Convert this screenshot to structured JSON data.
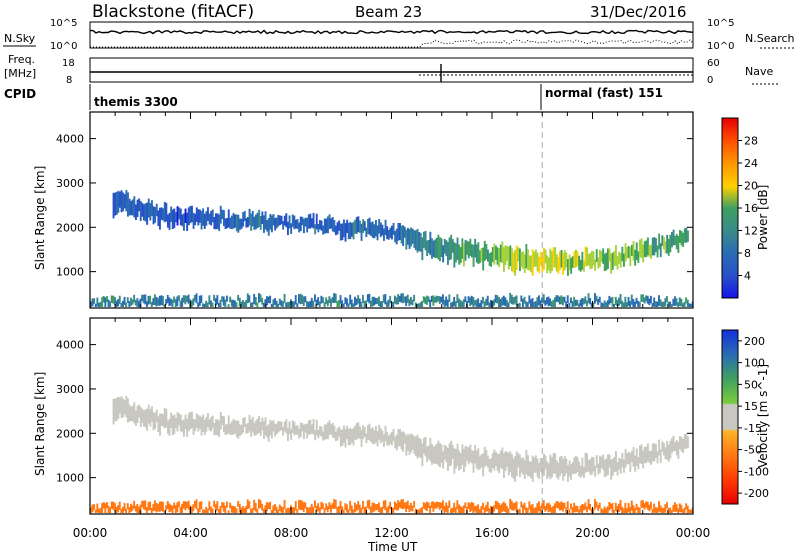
{
  "header": {
    "title": "Blackstone (fitACF)",
    "beam": "Beam 23",
    "date": "31/Dec/2016"
  },
  "status_panel": {
    "nsky_label": "N.Sky",
    "nsearch_label": "N.Search",
    "nsky_ticks": [
      "10^5",
      "10^0"
    ],
    "nsearch_ticks": [
      "10^5",
      "10^0"
    ],
    "freq_label": "Freq.",
    "freq_unit": "[MHz]",
    "freq_ticks": [
      "18",
      "8"
    ],
    "nave_label": "Nave",
    "nave_ticks": [
      "60",
      "0"
    ],
    "cpid_label": "CPID",
    "cpid_entries": [
      "themis 3300",
      "normal (fast) 151"
    ]
  },
  "chart_data": [
    {
      "type": "heatmap",
      "title": "",
      "ylabel": "Slant Range [km]",
      "yticks": [
        1000,
        2000,
        3000,
        4000
      ],
      "ylim": [
        180,
        4600
      ],
      "colorbar_label": "Power [dB]",
      "colorbar_ticks": [
        4,
        8,
        12,
        16,
        20,
        24,
        28
      ],
      "colorbar_range": [
        0,
        32
      ],
      "bands": [
        {
          "name": "main echo band",
          "x": [
            0.9,
            2,
            3,
            4,
            5,
            6,
            7,
            8,
            9,
            10,
            11,
            12,
            13,
            14,
            15,
            16,
            17,
            18,
            19,
            20,
            21,
            22,
            23,
            23.8
          ],
          "y_center": [
            2600,
            2400,
            2250,
            2200,
            2200,
            2150,
            2100,
            2050,
            2050,
            2000,
            1950,
            1900,
            1650,
            1500,
            1450,
            1350,
            1300,
            1250,
            1200,
            1250,
            1300,
            1450,
            1650,
            1800
          ],
          "y_width": [
            500,
            450,
            400,
            350,
            350,
            350,
            350,
            300,
            300,
            350,
            350,
            350,
            450,
            500,
            450,
            450,
            500,
            500,
            400,
            400,
            400,
            400,
            350,
            300
          ],
          "power_db": [
            6,
            6,
            6,
            6,
            6,
            7,
            7,
            7,
            7,
            7,
            8,
            8,
            10,
            12,
            14,
            15,
            17,
            19,
            18,
            17,
            16,
            15,
            14,
            12
          ]
        },
        {
          "name": "near range ground band",
          "x": [
            0,
            24
          ],
          "y_center": [
            300,
            300
          ],
          "y_width": [
            200,
            200
          ],
          "power_db": [
            10,
            10
          ]
        }
      ]
    },
    {
      "type": "heatmap",
      "title": "",
      "ylabel": "Slant Range [km]",
      "yticks": [
        1000,
        2000,
        3000,
        4000
      ],
      "ylim": [
        180,
        4600
      ],
      "colorbar_label": "Velocity [m s^-1]",
      "colorbar_ticks": [
        200,
        100,
        50,
        15,
        -15,
        -50,
        -100,
        -200
      ],
      "colorbar_range": [
        -250,
        250
      ],
      "bands": [
        {
          "name": "main echo band",
          "x": [
            0.9,
            2,
            3,
            4,
            5,
            6,
            7,
            8,
            9,
            10,
            11,
            12,
            13,
            14,
            15,
            16,
            17,
            18,
            19,
            20,
            21,
            22,
            23,
            23.8
          ],
          "y_center": [
            2600,
            2400,
            2250,
            2200,
            2200,
            2150,
            2100,
            2050,
            2050,
            2000,
            1950,
            1900,
            1650,
            1500,
            1450,
            1350,
            1300,
            1250,
            1200,
            1250,
            1300,
            1450,
            1650,
            1800
          ],
          "y_width": [
            500,
            450,
            400,
            350,
            350,
            350,
            350,
            300,
            300,
            350,
            350,
            350,
            450,
            500,
            450,
            450,
            500,
            500,
            400,
            400,
            400,
            400,
            350,
            300
          ],
          "velocity": [
            0,
            0,
            0,
            0,
            0,
            0,
            0,
            0,
            0,
            0,
            0,
            0,
            0,
            0,
            0,
            0,
            0,
            0,
            0,
            0,
            0,
            0,
            0,
            0
          ]
        },
        {
          "name": "near range ground band",
          "x": [
            0,
            24
          ],
          "y_center": [
            300,
            300
          ],
          "y_width": [
            200,
            200
          ],
          "velocity": [
            -50,
            -50
          ]
        }
      ]
    }
  ],
  "xaxis": {
    "label": "Time UT",
    "ticks": [
      "00:00",
      "04:00",
      "08:00",
      "12:00",
      "16:00",
      "20:00",
      "00:00"
    ],
    "range_hours": [
      0,
      24
    ],
    "cpid_change_hour": 18
  },
  "colors": {
    "power_scale": [
      "#1414e6",
      "#2850c8",
      "#2a6cb4",
      "#3a8a8c",
      "#3fa060",
      "#a8d23c",
      "#ffd000",
      "#ff9600",
      "#ff5000",
      "#e60000"
    ],
    "velocity_scale": [
      "#1430dc",
      "#2a6cb4",
      "#3fa060",
      "#7acc3c",
      "#c8c8c0",
      "#ffb428",
      "#ff7814",
      "#ff3c00",
      "#e60000"
    ]
  }
}
